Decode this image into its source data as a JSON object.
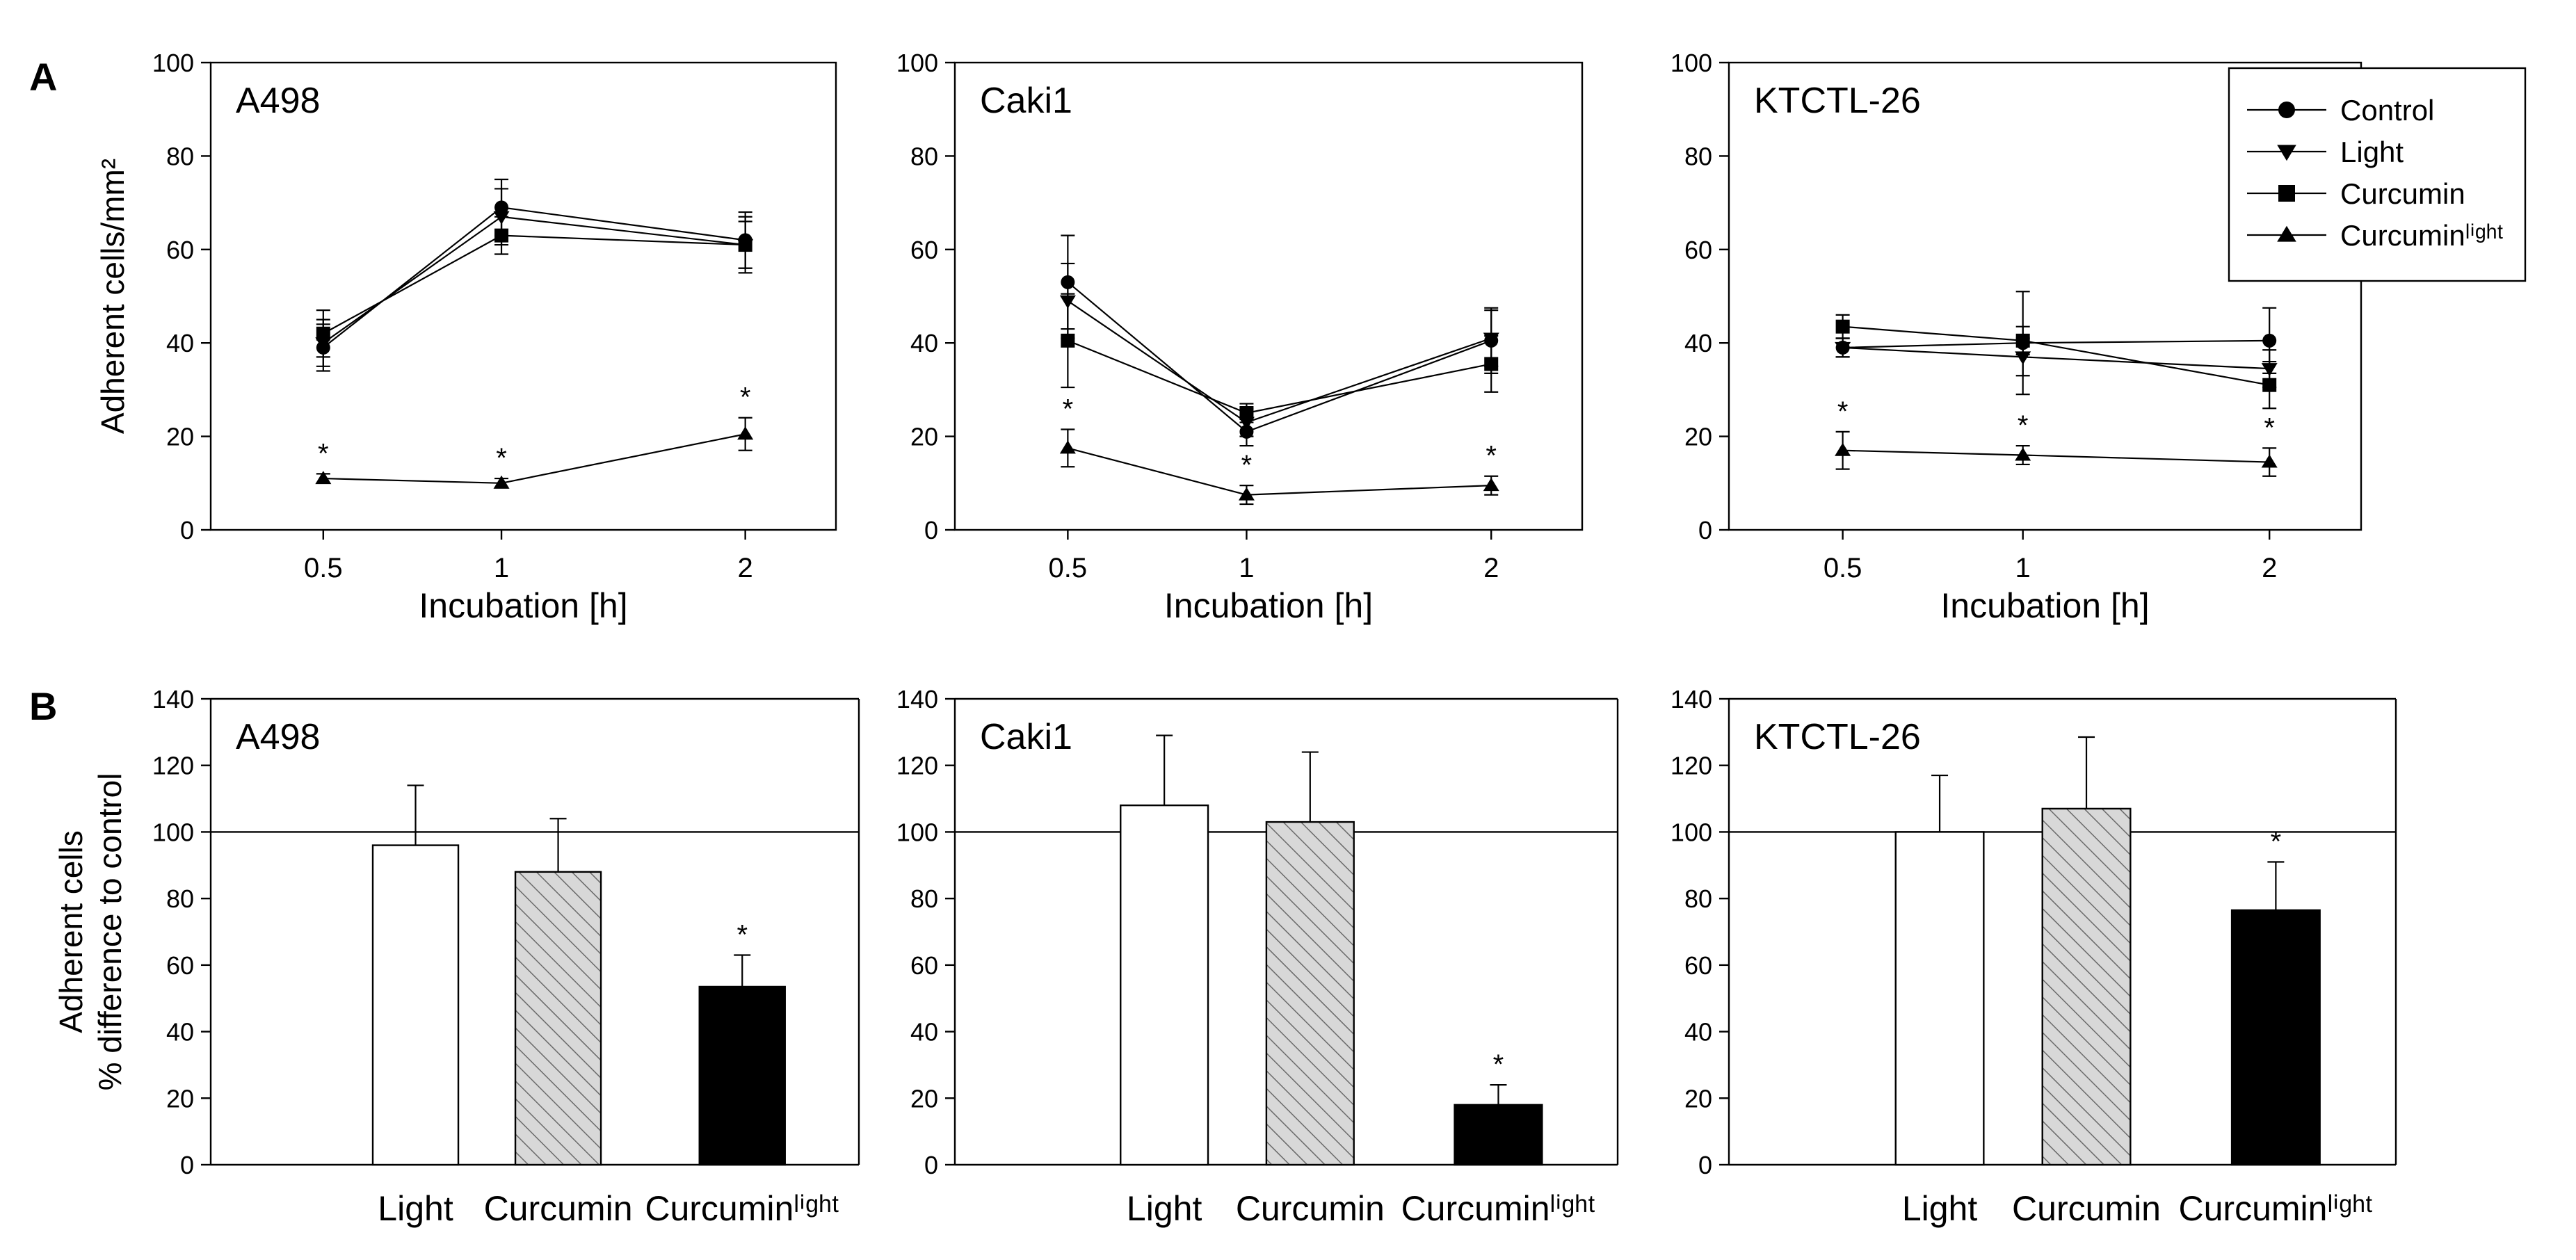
{
  "panel_labels": [
    "A",
    "B"
  ],
  "chart_data": [
    {
      "type": "line",
      "panel": "A",
      "title": "A498",
      "xlabel": "Incubation [h]",
      "ylabel": "Adherent cells/mm²",
      "categories": [
        "0.5",
        "1",
        "2"
      ],
      "ylim": [
        0,
        100
      ],
      "yticks": [
        0,
        20,
        40,
        60,
        80,
        100
      ],
      "series": [
        {
          "name": "Control",
          "marker": "circle",
          "values": [
            39,
            69,
            62
          ],
          "err": [
            5,
            6,
            6
          ]
        },
        {
          "name": "Light",
          "marker": "triangle-down",
          "values": [
            40,
            67,
            61
          ],
          "err": [
            5,
            6,
            5
          ]
        },
        {
          "name": "Curcumin",
          "marker": "square",
          "values": [
            42,
            63,
            61
          ],
          "err": [
            5,
            4,
            6
          ]
        },
        {
          "name": "Curcuminˡⁱᵍʰᵗ",
          "marker": "triangle-up",
          "values": [
            11,
            10,
            20.5
          ],
          "err": [
            1,
            1,
            3.5
          ]
        }
      ],
      "significance": [
        {
          "series": 3,
          "index": 0,
          "label": "*"
        },
        {
          "series": 3,
          "index": 1,
          "label": "*"
        },
        {
          "series": 3,
          "index": 2,
          "label": "*"
        }
      ]
    },
    {
      "type": "line",
      "panel": "A",
      "title": "Caki1",
      "xlabel": "Incubation [h]",
      "ylabel": "",
      "categories": [
        "0.5",
        "1",
        "2"
      ],
      "ylim": [
        0,
        100
      ],
      "yticks": [
        0,
        20,
        40,
        60,
        80,
        100
      ],
      "series": [
        {
          "name": "Control",
          "marker": "circle",
          "values": [
            53,
            21,
            40.5
          ],
          "err": [
            10,
            3,
            7
          ]
        },
        {
          "name": "Light",
          "marker": "triangle-down",
          "values": [
            49,
            23,
            41
          ],
          "err": [
            8,
            3,
            6
          ]
        },
        {
          "name": "Curcumin",
          "marker": "square",
          "values": [
            40.5,
            25,
            35.5
          ],
          "err": [
            10,
            2,
            6
          ]
        },
        {
          "name": "Curcuminˡⁱᵍʰᵗ",
          "marker": "triangle-up",
          "values": [
            17.5,
            7.5,
            9.5
          ],
          "err": [
            4,
            2,
            2
          ]
        }
      ],
      "significance": [
        {
          "series": 3,
          "index": 0,
          "label": "*"
        },
        {
          "series": 3,
          "index": 1,
          "label": "*"
        },
        {
          "series": 3,
          "index": 2,
          "label": "*"
        }
      ]
    },
    {
      "type": "line",
      "panel": "A",
      "title": "KTCTL-26",
      "xlabel": "Incubation [h]",
      "ylabel": "",
      "categories": [
        "0.5",
        "1",
        "2"
      ],
      "ylim": [
        0,
        100
      ],
      "yticks": [
        0,
        20,
        40,
        60,
        80,
        100
      ],
      "series": [
        {
          "name": "Control",
          "marker": "circle",
          "values": [
            39,
            40,
            40.5
          ],
          "err": [
            2,
            11,
            7
          ]
        },
        {
          "name": "Light",
          "marker": "triangle-down",
          "values": [
            39,
            37,
            34.5
          ],
          "err": [
            2,
            4,
            4
          ]
        },
        {
          "name": "Curcumin",
          "marker": "square",
          "values": [
            43.5,
            40.5,
            31
          ],
          "err": [
            2.5,
            3,
            5
          ]
        },
        {
          "name": "Curcuminˡⁱᵍʰᵗ",
          "marker": "triangle-up",
          "values": [
            17,
            16,
            14.5
          ],
          "err": [
            4,
            2,
            3
          ]
        }
      ],
      "significance": [
        {
          "series": 3,
          "index": 0,
          "label": "*"
        },
        {
          "series": 3,
          "index": 1,
          "label": "*"
        },
        {
          "series": 3,
          "index": 2,
          "label": "*"
        }
      ]
    },
    {
      "type": "bar",
      "panel": "B",
      "title": "A498",
      "xlabel": "",
      "ylabel": "Adherent cells\n% difference to control",
      "categories": [
        "Light",
        "Curcumin",
        "Curcuminˡⁱᵍʰᵗ"
      ],
      "values": [
        96,
        88,
        53.5
      ],
      "err": [
        18,
        16,
        9.5
      ],
      "fills": [
        "white",
        "hatched",
        "black"
      ],
      "reference_line": 100,
      "ylim": [
        0,
        140
      ],
      "yticks": [
        0,
        20,
        40,
        60,
        80,
        100,
        120,
        140
      ],
      "significance": [
        {
          "index": 2,
          "label": "*"
        }
      ]
    },
    {
      "type": "bar",
      "panel": "B",
      "title": "Caki1",
      "xlabel": "",
      "ylabel": "",
      "categories": [
        "Light",
        "Curcumin",
        "Curcuminˡⁱᵍʰᵗ"
      ],
      "values": [
        108,
        103,
        18
      ],
      "err": [
        21,
        21,
        6
      ],
      "fills": [
        "white",
        "hatched",
        "black"
      ],
      "reference_line": 100,
      "ylim": [
        0,
        140
      ],
      "yticks": [
        0,
        20,
        40,
        60,
        80,
        100,
        120,
        140
      ],
      "significance": [
        {
          "index": 2,
          "label": "*"
        }
      ]
    },
    {
      "type": "bar",
      "panel": "B",
      "title": "KTCTL-26",
      "xlabel": "",
      "ylabel": "",
      "categories": [
        "Light",
        "Curcumin",
        "Curcuminˡⁱᵍʰᵗ"
      ],
      "values": [
        100,
        107,
        76.5
      ],
      "err": [
        17,
        21.5,
        14.5
      ],
      "fills": [
        "white",
        "hatched",
        "black"
      ],
      "reference_line": 100,
      "ylim": [
        0,
        140
      ],
      "yticks": [
        0,
        20,
        40,
        60,
        80,
        100,
        120,
        140
      ],
      "significance": [
        {
          "index": 2,
          "label": "*"
        }
      ]
    }
  ],
  "legend": {
    "placement": "top-right",
    "items": [
      {
        "label": "Control",
        "marker": "circle"
      },
      {
        "label": "Light",
        "marker": "triangle-down"
      },
      {
        "label": "Curcumin",
        "marker": "square"
      },
      {
        "label": "Curcuminˡⁱᵍʰᵗ",
        "marker": "triangle-up"
      }
    ]
  }
}
